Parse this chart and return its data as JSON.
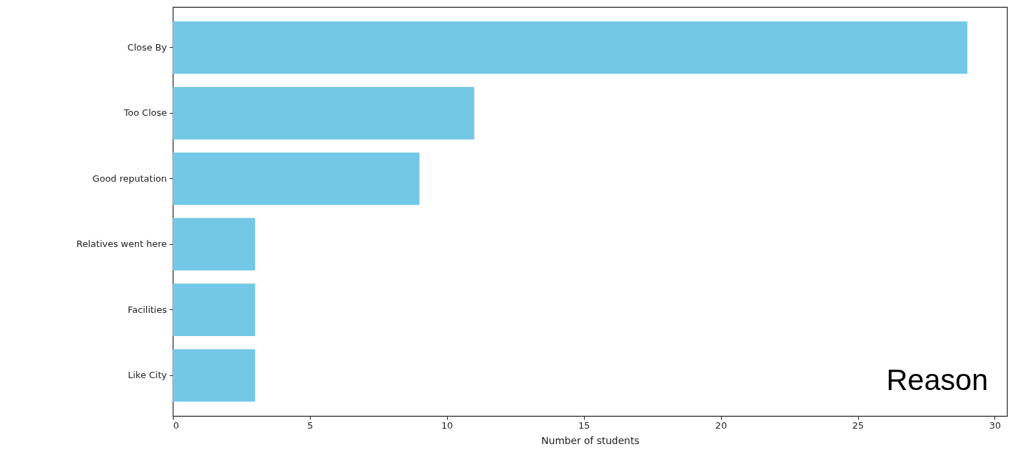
{
  "chart_data": {
    "type": "bar",
    "orientation": "horizontal",
    "categories": [
      "Close By",
      "Too Close",
      "Good reputation",
      "Relatives went here",
      "Facilities",
      "Like City"
    ],
    "values": [
      29,
      11,
      9,
      3,
      3,
      3
    ],
    "color": "#73c7e7",
    "xlabel": "Number of students",
    "xlim": [
      0,
      30.45
    ],
    "xticks": [
      0,
      5,
      10,
      15,
      20,
      25,
      30
    ],
    "grid": false,
    "annotations": [
      "Reason"
    ]
  }
}
